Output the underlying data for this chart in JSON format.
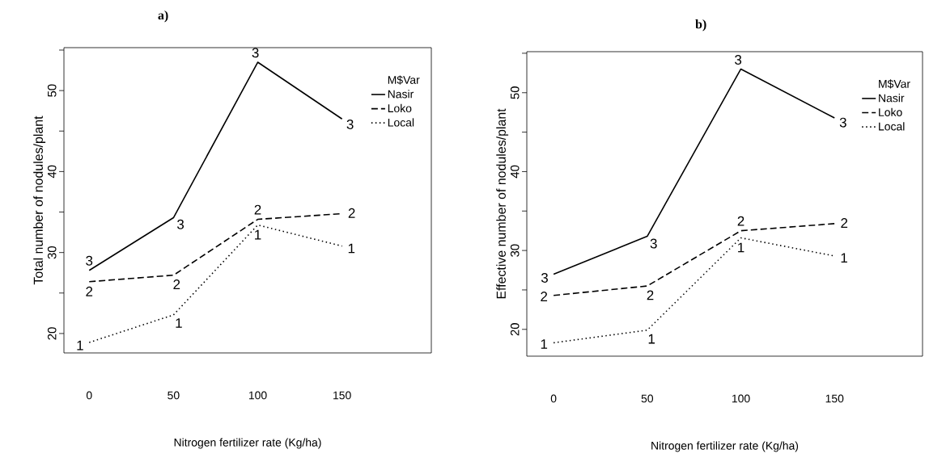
{
  "chart_data": [
    {
      "type": "line",
      "title": "a)",
      "xlabel": "Nitrogen fertilizer rate (Kg/ha)",
      "ylabel": "Total number of nodules/plant",
      "legend_title": "M$Var",
      "legend": "top right",
      "grid": false,
      "marker": "none",
      "x": [
        0,
        50,
        100,
        150
      ],
      "xlim": [
        -15,
        203
      ],
      "xticks": [
        0,
        50,
        100,
        150
      ],
      "ylim": [
        17.6,
        55.3
      ],
      "yticks": [
        20,
        {
          "value": 25,
          "label": null
        },
        30,
        {
          "value": 35,
          "label": null
        },
        40,
        {
          "value": 45,
          "label": null
        },
        50,
        {
          "value": 55,
          "label": null
        }
      ],
      "series": [
        {
          "name": "Nasir",
          "color": "#000000",
          "line_style": "solid",
          "values": [
            27.8,
            34.3,
            53.5,
            46.5
          ]
        },
        {
          "name": "Loko",
          "color": "#000000",
          "line_style": "dashed",
          "values": [
            26.4,
            27.2,
            34.1,
            34.8
          ]
        },
        {
          "name": "Local",
          "color": "#000000",
          "line_style": "dotted",
          "values": [
            18.9,
            22.3,
            33.4,
            30.8
          ]
        }
      ],
      "annotations": [
        {
          "text": "3",
          "x": 0,
          "y": 27.8
        },
        {
          "text": "3",
          "x": 50,
          "y": 34.3
        },
        {
          "text": "3",
          "x": 100,
          "y": 53.5
        },
        {
          "text": "3",
          "x": 150,
          "y": 46.5
        },
        {
          "text": "2",
          "x": 0,
          "y": 26.4
        },
        {
          "text": "2",
          "x": 50,
          "y": 27.2
        },
        {
          "text": "2",
          "x": 100,
          "y": 34.1
        },
        {
          "text": "2",
          "x": 150,
          "y": 34.8
        },
        {
          "text": "1",
          "x": 0,
          "y": 18.9
        },
        {
          "text": "1",
          "x": 50,
          "y": 22.3
        },
        {
          "text": "1",
          "x": 100,
          "y": 33.4
        },
        {
          "text": "1",
          "x": 150,
          "y": 30.8
        }
      ]
    },
    {
      "type": "line",
      "title": "b)",
      "xlabel": "Nitrogen fertilizer rate (Kg/ha)",
      "ylabel": "Effective number of nodules/plant",
      "legend_title": "M$Var",
      "legend": "top right",
      "grid": false,
      "marker": "none",
      "x": [
        0,
        50,
        100,
        150
      ],
      "xlim": [
        -14.3,
        197
      ],
      "xticks": [
        0,
        50,
        100,
        150
      ],
      "ylim": [
        16.6,
        55.2
      ],
      "yticks": [
        20,
        {
          "value": 25,
          "label": null
        },
        30,
        {
          "value": 35,
          "label": null
        },
        40,
        {
          "value": 45,
          "label": null
        },
        50,
        {
          "value": 55,
          "label": null
        }
      ],
      "series": [
        {
          "name": "Nasir",
          "color": "#000000",
          "line_style": "solid",
          "values": [
            27.0,
            31.8,
            53.0,
            46.8
          ]
        },
        {
          "name": "Loko",
          "color": "#000000",
          "line_style": "dashed",
          "values": [
            24.3,
            25.5,
            32.5,
            33.4
          ]
        },
        {
          "name": "Local",
          "color": "#000000",
          "line_style": "dotted",
          "values": [
            18.3,
            19.9,
            31.6,
            29.3
          ]
        }
      ],
      "annotations": [
        {
          "text": "3",
          "x": 0,
          "y": 27.0
        },
        {
          "text": "3",
          "x": 50,
          "y": 31.8
        },
        {
          "text": "3",
          "x": 100,
          "y": 53.0
        },
        {
          "text": "3",
          "x": 150,
          "y": 46.8
        },
        {
          "text": "2",
          "x": 0,
          "y": 24.3
        },
        {
          "text": "2",
          "x": 50,
          "y": 25.5
        },
        {
          "text": "2",
          "x": 100,
          "y": 32.5
        },
        {
          "text": "2",
          "x": 150,
          "y": 33.4
        },
        {
          "text": "1",
          "x": 0,
          "y": 18.3
        },
        {
          "text": "1",
          "x": 50,
          "y": 19.9
        },
        {
          "text": "1",
          "x": 100,
          "y": 31.6
        },
        {
          "text": "1",
          "x": 150,
          "y": 29.3
        }
      ]
    }
  ]
}
